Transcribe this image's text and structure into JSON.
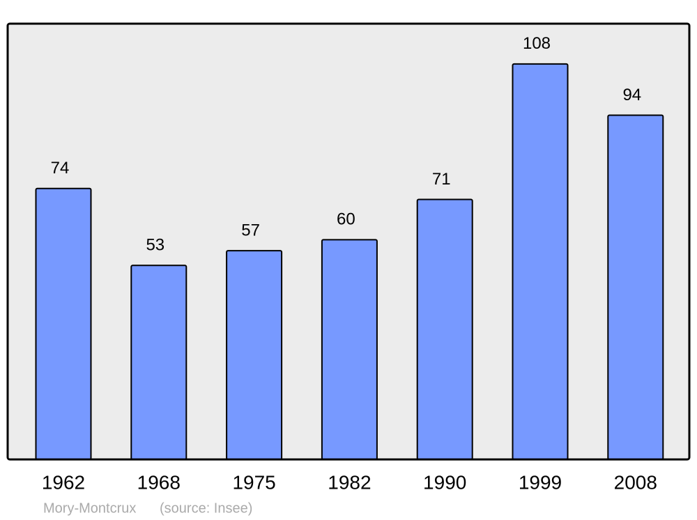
{
  "chart_data": {
    "type": "bar",
    "title": "Mory-Montcrux",
    "source": "(source: Insee)",
    "categories": [
      "1962",
      "1968",
      "1975",
      "1982",
      "1990",
      "1999",
      "2008"
    ],
    "values": [
      74,
      53,
      57,
      60,
      71,
      108,
      94
    ],
    "color": "#7799ff",
    "ylim": [
      0,
      119
    ],
    "show_value_labels": true
  }
}
